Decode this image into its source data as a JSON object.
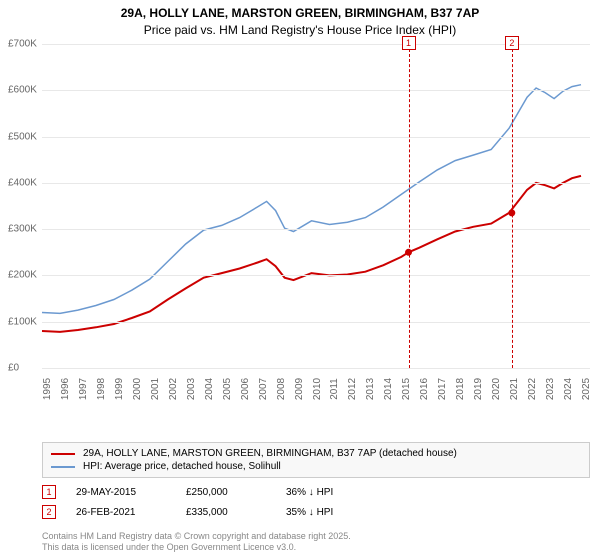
{
  "chart": {
    "title": "29A, HOLLY LANE, MARSTON GREEN, BIRMINGHAM, B37 7AP",
    "subtitle": "Price paid vs. HM Land Registry's House Price Index (HPI)",
    "title_fontsize": 12,
    "background_color": "#ffffff",
    "grid_color": "#e8e8e8",
    "axis_text_color": "#666666",
    "ylim": [
      0,
      700000
    ],
    "yticks": [
      0,
      100000,
      200000,
      300000,
      400000,
      500000,
      600000,
      700000
    ],
    "ytick_labels": [
      "£0",
      "£100K",
      "£200K",
      "£300K",
      "£400K",
      "£500K",
      "£600K",
      "£700K"
    ],
    "xlim": [
      1995,
      2025.5
    ],
    "xticks": [
      1995,
      1996,
      1997,
      1998,
      1999,
      2000,
      2001,
      2002,
      2003,
      2004,
      2005,
      2006,
      2007,
      2008,
      2009,
      2010,
      2011,
      2012,
      2013,
      2014,
      2015,
      2016,
      2017,
      2018,
      2019,
      2020,
      2021,
      2022,
      2023,
      2024,
      2025
    ],
    "series": {
      "property": {
        "color": "#cc0000",
        "width": 2,
        "label": "29A, HOLLY LANE, MARSTON GREEN, BIRMINGHAM, B37 7AP (detached house)",
        "points": [
          [
            1995,
            80000
          ],
          [
            1996,
            78000
          ],
          [
            1997,
            82000
          ],
          [
            1998,
            88000
          ],
          [
            1999,
            95000
          ],
          [
            2000,
            108000
          ],
          [
            2001,
            122000
          ],
          [
            2002,
            148000
          ],
          [
            2003,
            172000
          ],
          [
            2004,
            195000
          ],
          [
            2005,
            205000
          ],
          [
            2006,
            215000
          ],
          [
            2007,
            228000
          ],
          [
            2007.5,
            235000
          ],
          [
            2008,
            220000
          ],
          [
            2008.5,
            195000
          ],
          [
            2009,
            190000
          ],
          [
            2010,
            205000
          ],
          [
            2011,
            200000
          ],
          [
            2012,
            202000
          ],
          [
            2013,
            208000
          ],
          [
            2014,
            222000
          ],
          [
            2015,
            240000
          ],
          [
            2015.4,
            250000
          ],
          [
            2016,
            260000
          ],
          [
            2017,
            278000
          ],
          [
            2018,
            295000
          ],
          [
            2019,
            305000
          ],
          [
            2020,
            312000
          ],
          [
            2021,
            335000
          ],
          [
            2022,
            385000
          ],
          [
            2022.5,
            400000
          ],
          [
            2023,
            395000
          ],
          [
            2023.5,
            388000
          ],
          [
            2024,
            400000
          ],
          [
            2024.5,
            410000
          ],
          [
            2025,
            415000
          ]
        ]
      },
      "hpi": {
        "color": "#6b99d0",
        "width": 1.5,
        "label": "HPI: Average price, detached house, Solihull",
        "points": [
          [
            1995,
            120000
          ],
          [
            1996,
            118000
          ],
          [
            1997,
            125000
          ],
          [
            1998,
            135000
          ],
          [
            1999,
            148000
          ],
          [
            2000,
            168000
          ],
          [
            2001,
            192000
          ],
          [
            2002,
            230000
          ],
          [
            2003,
            268000
          ],
          [
            2004,
            298000
          ],
          [
            2005,
            308000
          ],
          [
            2006,
            325000
          ],
          [
            2007,
            348000
          ],
          [
            2007.5,
            360000
          ],
          [
            2008,
            340000
          ],
          [
            2008.5,
            302000
          ],
          [
            2009,
            295000
          ],
          [
            2010,
            318000
          ],
          [
            2011,
            310000
          ],
          [
            2012,
            315000
          ],
          [
            2013,
            325000
          ],
          [
            2014,
            348000
          ],
          [
            2015,
            375000
          ],
          [
            2016,
            402000
          ],
          [
            2017,
            428000
          ],
          [
            2018,
            448000
          ],
          [
            2019,
            460000
          ],
          [
            2020,
            472000
          ],
          [
            2021,
            518000
          ],
          [
            2022,
            585000
          ],
          [
            2022.5,
            605000
          ],
          [
            2023,
            595000
          ],
          [
            2023.5,
            582000
          ],
          [
            2024,
            598000
          ],
          [
            2024.5,
            608000
          ],
          [
            2025,
            612000
          ]
        ]
      }
    },
    "sale_markers": [
      {
        "n": "1",
        "year": 2015.4,
        "color": "#cc0000"
      },
      {
        "n": "2",
        "year": 2021.15,
        "color": "#cc0000"
      }
    ],
    "sale_points": [
      {
        "year": 2015.4,
        "value": 250000,
        "color": "#cc0000"
      },
      {
        "year": 2021.15,
        "value": 335000,
        "color": "#cc0000"
      }
    ]
  },
  "sales": [
    {
      "n": "1",
      "date": "29-MAY-2015",
      "price": "£250,000",
      "hpi": "36% ↓ HPI",
      "color": "#cc0000"
    },
    {
      "n": "2",
      "date": "26-FEB-2021",
      "price": "£335,000",
      "hpi": "35% ↓ HPI",
      "color": "#cc0000"
    }
  ],
  "footer": {
    "line1": "Contains HM Land Registry data © Crown copyright and database right 2025.",
    "line2": "This data is licensed under the Open Government Licence v3.0."
  }
}
